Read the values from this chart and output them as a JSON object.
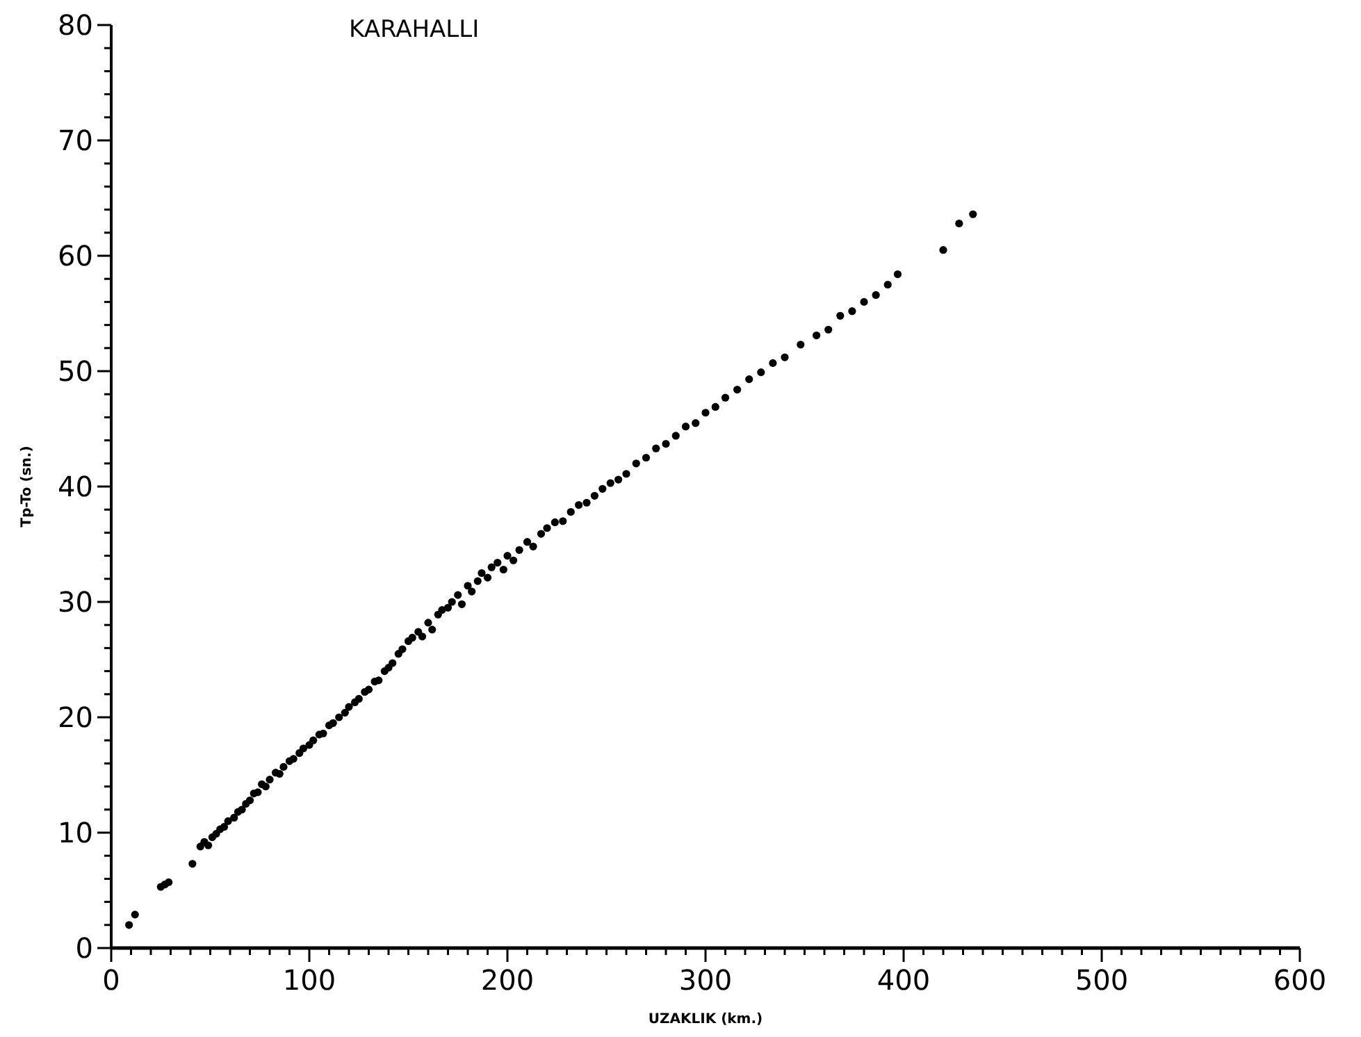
{
  "chart_data": {
    "type": "scatter",
    "title": "KARAHALLI",
    "xlabel": "UZAKLIK (km.)",
    "ylabel": "Tp-To (sn.)",
    "xlim": [
      0,
      600
    ],
    "ylim": [
      0,
      80
    ],
    "xticks": [
      0,
      100,
      200,
      300,
      400,
      500,
      600
    ],
    "yticks": [
      0,
      10,
      20,
      30,
      40,
      50,
      60,
      70,
      80
    ],
    "marker": "circle",
    "grid": false,
    "series": [
      {
        "color": "#000000",
        "x": [
          9,
          12,
          25,
          27,
          29,
          41,
          45,
          47,
          49,
          51,
          53,
          55,
          57,
          59,
          62,
          64,
          66,
          68,
          70,
          72,
          74,
          76,
          78,
          80,
          83,
          85,
          87,
          90,
          92,
          95,
          97,
          100,
          102,
          105,
          107,
          110,
          112,
          115,
          118,
          120,
          123,
          125,
          128,
          130,
          133,
          135,
          138,
          140,
          142,
          145,
          147,
          150,
          152,
          155,
          157,
          160,
          162,
          165,
          167,
          170,
          172,
          175,
          177,
          180,
          182,
          185,
          187,
          190,
          192,
          195,
          198,
          200,
          203,
          206,
          210,
          213,
          217,
          220,
          224,
          228,
          232,
          236,
          240,
          244,
          248,
          252,
          256,
          260,
          265,
          270,
          275,
          280,
          285,
          290,
          295,
          300,
          305,
          310,
          316,
          322,
          328,
          334,
          340,
          348,
          356,
          362,
          368,
          374,
          380,
          386,
          392,
          397,
          420,
          428,
          435
        ],
        "values": [
          2.0,
          2.9,
          5.3,
          5.5,
          5.7,
          7.3,
          8.8,
          9.2,
          8.9,
          9.6,
          9.9,
          10.3,
          10.5,
          11.0,
          11.3,
          11.8,
          12.0,
          12.5,
          12.8,
          13.4,
          13.5,
          14.2,
          14.0,
          14.6,
          15.2,
          15.1,
          15.7,
          16.2,
          16.4,
          16.9,
          17.3,
          17.6,
          18.0,
          18.5,
          18.6,
          19.3,
          19.5,
          20.0,
          20.4,
          20.9,
          21.3,
          21.6,
          22.2,
          22.4,
          23.1,
          23.2,
          24.0,
          24.3,
          24.7,
          25.5,
          25.9,
          26.6,
          26.9,
          27.4,
          27.0,
          28.2,
          27.6,
          28.9,
          29.3,
          29.5,
          30.0,
          30.6,
          29.8,
          31.4,
          30.9,
          31.8,
          32.5,
          32.1,
          33.0,
          33.4,
          32.8,
          34.0,
          33.6,
          34.5,
          35.2,
          34.8,
          35.9,
          36.4,
          36.9,
          37.0,
          37.8,
          38.4,
          38.6,
          39.2,
          39.8,
          40.3,
          40.6,
          41.1,
          42.0,
          42.5,
          43.3,
          43.7,
          44.4,
          45.2,
          45.5,
          46.4,
          46.9,
          47.7,
          48.4,
          49.3,
          49.9,
          50.7,
          51.2,
          52.3,
          53.1,
          53.6,
          54.8,
          55.2,
          56.0,
          56.6,
          57.5,
          58.4,
          60.5,
          62.8,
          63.6
        ]
      }
    ]
  }
}
